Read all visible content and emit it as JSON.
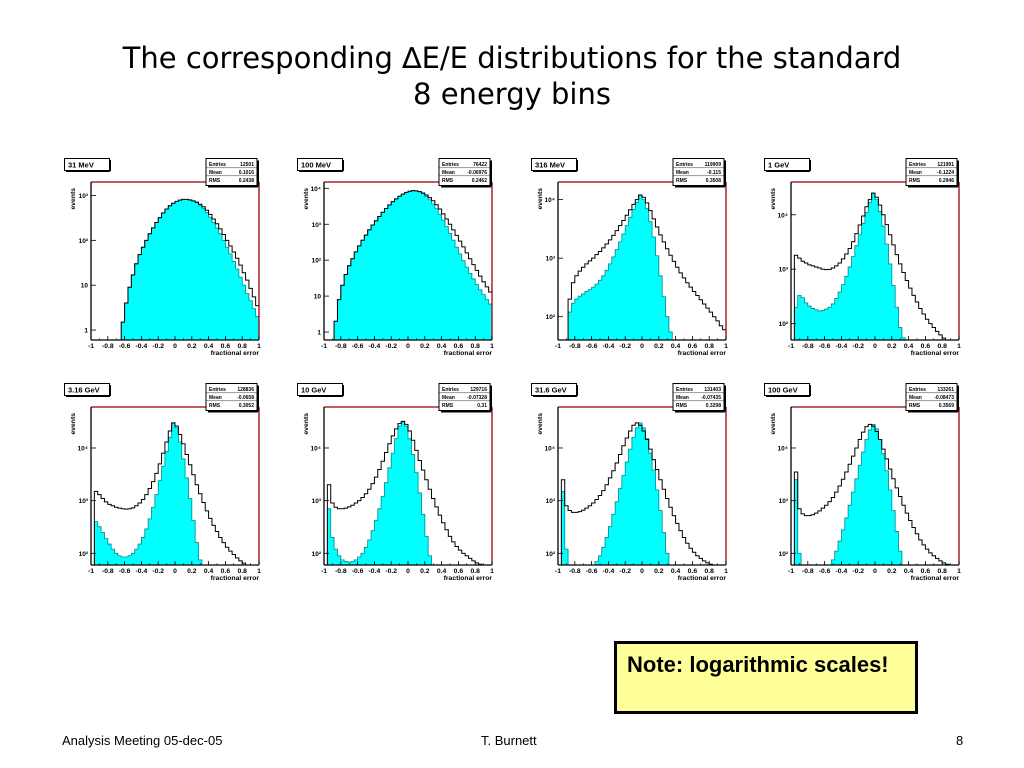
{
  "slide": {
    "title_line1": "The corresponding ∆E/E distributions for the standard",
    "title_line2": "8 energy bins",
    "note": "Note: logarithmic scales!",
    "footer_left": "Analysis Meeting 05-dec-05",
    "footer_center": "T. Burnett",
    "footer_right": "8"
  },
  "colors": {
    "fill": "#00ffff",
    "outline": "#000000",
    "frame_right": "#990000"
  },
  "chart_data": [
    {
      "type": "histogram",
      "title": "31 MeV",
      "xlabel": "fractional error",
      "ylabel": "events",
      "log_y": true,
      "xlim": [
        -1,
        1
      ],
      "ylim": [
        0.6,
        2000
      ],
      "xticks": [
        -1,
        -0.8,
        -0.6,
        -0.4,
        -0.2,
        0,
        0.2,
        0.4,
        0.6,
        0.8,
        1
      ],
      "yticks": [
        {
          "v": 1,
          "label": "1"
        },
        {
          "v": 10,
          "label": "10"
        },
        {
          "v": 100,
          "label": "10²"
        },
        {
          "v": 1000,
          "label": "10³"
        }
      ],
      "stats": [
        {
          "label": "Entries",
          "value": "12501"
        },
        {
          "label": "Mean",
          "value": "0.1016"
        },
        {
          "label": "RMS",
          "value": "0.2438"
        }
      ],
      "filled": [
        0.6,
        0.6,
        0.6,
        0.6,
        0.6,
        0.6,
        0.6,
        0.6,
        0.6,
        1.5,
        4,
        9,
        17,
        30,
        48,
        70,
        100,
        140,
        190,
        250,
        320,
        410,
        500,
        590,
        670,
        740,
        790,
        820,
        820,
        800,
        750,
        690,
        610,
        520,
        420,
        330,
        250,
        190,
        140,
        100,
        70,
        50,
        34,
        23,
        15,
        10,
        6.5,
        4.5,
        3,
        2
      ],
      "outline": [
        0.6,
        0.6,
        0.6,
        0.6,
        0.6,
        0.6,
        0.6,
        0.6,
        0.6,
        1.5,
        4,
        9,
        17,
        30,
        48,
        70,
        100,
        140,
        190,
        250,
        320,
        410,
        500,
        590,
        670,
        740,
        790,
        820,
        820,
        800,
        760,
        710,
        640,
        560,
        470,
        380,
        300,
        235,
        180,
        135,
        100,
        75,
        55,
        40,
        28,
        19,
        13,
        8.5,
        5.5,
        3.5
      ]
    },
    {
      "type": "histogram",
      "title": "100 MeV",
      "xlabel": "fractional error",
      "ylabel": "events",
      "log_y": true,
      "xlim": [
        -1,
        1
      ],
      "ylim": [
        0.6,
        15000
      ],
      "xticks": [
        -1,
        -0.8,
        -0.6,
        -0.4,
        -0.2,
        0,
        0.2,
        0.4,
        0.6,
        0.8,
        1
      ],
      "yticks": [
        {
          "v": 1,
          "label": "1"
        },
        {
          "v": 10,
          "label": "10"
        },
        {
          "v": 100,
          "label": "10²"
        },
        {
          "v": 1000,
          "label": "10³"
        },
        {
          "v": 10000,
          "label": "10⁴"
        }
      ],
      "stats": [
        {
          "label": "Entries",
          "value": "76422"
        },
        {
          "label": "Mean",
          "value": "-0.06976"
        },
        {
          "label": "RMS",
          "value": "0.2462"
        }
      ],
      "filled": [
        0.6,
        0.6,
        0.6,
        2,
        8,
        20,
        40,
        70,
        110,
        170,
        250,
        360,
        500,
        700,
        950,
        1250,
        1650,
        2150,
        2750,
        3450,
        4250,
        5100,
        6000,
        6900,
        7700,
        8300,
        8600,
        8500,
        8000,
        7100,
        6000,
        4800,
        3700,
        2700,
        1900,
        1300,
        860,
        560,
        360,
        230,
        150,
        97,
        64,
        43,
        30,
        21,
        15,
        11,
        8,
        6
      ],
      "outline": [
        0.6,
        0.6,
        0.6,
        2,
        8,
        20,
        40,
        70,
        110,
        170,
        250,
        360,
        500,
        700,
        950,
        1250,
        1650,
        2150,
        2750,
        3450,
        4250,
        5100,
        6000,
        6900,
        7700,
        8300,
        8600,
        8500,
        8100,
        7400,
        6500,
        5500,
        4500,
        3500,
        2650,
        1950,
        1400,
        1000,
        700,
        490,
        340,
        235,
        160,
        110,
        75,
        52,
        36,
        25,
        18,
        13
      ]
    },
    {
      "type": "histogram",
      "title": "316 MeV",
      "xlabel": "fractional error",
      "ylabel": "events",
      "log_y": true,
      "xlim": [
        -1,
        1
      ],
      "ylim": [
        40,
        20000
      ],
      "xticks": [
        -1,
        -0.8,
        -0.6,
        -0.4,
        -0.2,
        0,
        0.2,
        0.4,
        0.6,
        0.8,
        1
      ],
      "yticks": [
        {
          "v": 100,
          "label": "10²"
        },
        {
          "v": 1000,
          "label": "10³"
        },
        {
          "v": 10000,
          "label": "10⁴"
        }
      ],
      "stats": [
        {
          "label": "Entries",
          "value": "119909"
        },
        {
          "label": "Mean",
          "value": "-0.115"
        },
        {
          "label": "RMS",
          "value": "0.3508"
        }
      ],
      "filled": [
        40,
        40,
        40,
        120,
        170,
        200,
        225,
        245,
        270,
        290,
        320,
        360,
        420,
        500,
        620,
        800,
        1050,
        1400,
        1900,
        2600,
        3600,
        5000,
        6800,
        9000,
        12000,
        10000,
        7000,
        4200,
        2300,
        1100,
        500,
        220,
        100,
        55,
        40,
        40,
        40,
        40,
        40,
        40,
        40,
        40,
        40,
        40,
        40,
        40,
        40,
        40,
        40,
        40
      ],
      "outline": [
        40,
        40,
        40,
        200,
        380,
        500,
        600,
        700,
        800,
        900,
        1000,
        1150,
        1300,
        1500,
        1750,
        2050,
        2450,
        2950,
        3600,
        4400,
        5400,
        6700,
        8300,
        10000,
        12000,
        11000,
        8800,
        6500,
        4700,
        3400,
        2500,
        1900,
        1450,
        1120,
        880,
        700,
        560,
        460,
        380,
        320,
        270,
        230,
        195,
        165,
        140,
        120,
        100,
        85,
        70,
        60
      ]
    },
    {
      "type": "histogram",
      "title": "1 GeV",
      "xlabel": "fractional error",
      "ylabel": "events",
      "log_y": true,
      "xlim": [
        -1,
        1
      ],
      "ylim": [
        50,
        40000
      ],
      "xticks": [
        -1,
        -0.8,
        -0.6,
        -0.4,
        -0.2,
        0,
        0.2,
        0.4,
        0.6,
        0.8,
        1
      ],
      "yticks": [
        {
          "v": 100,
          "label": "10²"
        },
        {
          "v": 1000,
          "label": "10³"
        },
        {
          "v": 10000,
          "label": "10⁴"
        }
      ],
      "stats": [
        {
          "label": "Entries",
          "value": "121991"
        },
        {
          "label": "Mean",
          "value": "-0.1224"
        },
        {
          "label": "RMS",
          "value": "0.2946"
        }
      ],
      "filled": [
        50,
        200,
        330,
        300,
        240,
        210,
        190,
        180,
        170,
        175,
        185,
        200,
        230,
        290,
        380,
        520,
        740,
        1100,
        1700,
        2700,
        4300,
        7000,
        11000,
        17000,
        25000,
        19000,
        11500,
        6200,
        2900,
        1250,
        500,
        200,
        85,
        55,
        50,
        50,
        50,
        50,
        50,
        50,
        50,
        50,
        50,
        50,
        50,
        50,
        50,
        50,
        50,
        50
      ],
      "outline": [
        50,
        1800,
        1600,
        1400,
        1300,
        1200,
        1150,
        1100,
        1050,
        1000,
        980,
        990,
        1050,
        1150,
        1300,
        1550,
        1900,
        2400,
        3200,
        4500,
        6500,
        9500,
        14000,
        19000,
        25000,
        21000,
        15000,
        10000,
        6600,
        4300,
        2800,
        1850,
        1250,
        870,
        620,
        450,
        330,
        250,
        190,
        150,
        120,
        100,
        85,
        72,
        62,
        54,
        50,
        50,
        50,
        50
      ]
    },
    {
      "type": "histogram",
      "title": "3.16 GeV",
      "xlabel": "fractional error",
      "ylabel": "events",
      "log_y": true,
      "xlim": [
        -1,
        1
      ],
      "ylim": [
        60,
        60000
      ],
      "xticks": [
        -1,
        -0.8,
        -0.6,
        -0.4,
        -0.2,
        0,
        0.2,
        0.4,
        0.6,
        0.8,
        1
      ],
      "yticks": [
        {
          "v": 100,
          "label": "10²"
        },
        {
          "v": 1000,
          "label": "10³"
        },
        {
          "v": 10000,
          "label": "10⁴"
        }
      ],
      "stats": [
        {
          "label": "Entries",
          "value": "128836"
        },
        {
          "label": "Mean",
          "value": "-0.0658"
        },
        {
          "label": "RMS",
          "value": "0.3052"
        }
      ],
      "filled": [
        60,
        400,
        320,
        250,
        190,
        150,
        120,
        100,
        90,
        85,
        85,
        90,
        100,
        120,
        150,
        200,
        290,
        450,
        750,
        1300,
        2400,
        4500,
        8500,
        16000,
        30000,
        24000,
        13000,
        6200,
        2700,
        1100,
        420,
        160,
        75,
        60,
        60,
        60,
        60,
        60,
        60,
        60,
        60,
        60,
        60,
        60,
        60,
        60,
        60,
        60,
        60,
        60
      ],
      "outline": [
        60,
        1500,
        1300,
        1100,
        950,
        850,
        800,
        750,
        720,
        700,
        690,
        700,
        730,
        800,
        900,
        1050,
        1300,
        1700,
        2300,
        3300,
        5000,
        8000,
        13000,
        21000,
        30000,
        26000,
        18000,
        12000,
        7500,
        4800,
        3100,
        2000,
        1350,
        920,
        640,
        460,
        340,
        260,
        200,
        160,
        130,
        110,
        95,
        82,
        72,
        65,
        60,
        60,
        60,
        60
      ]
    },
    {
      "type": "histogram",
      "title": "10 GeV",
      "xlabel": "fractional error",
      "ylabel": "events",
      "log_y": true,
      "xlim": [
        -1,
        1
      ],
      "ylim": [
        60,
        60000
      ],
      "xticks": [
        -1,
        -0.8,
        -0.6,
        -0.4,
        -0.2,
        0,
        0.2,
        0.4,
        0.6,
        0.8,
        1
      ],
      "yticks": [
        {
          "v": 100,
          "label": "10²"
        },
        {
          "v": 1000,
          "label": "10³"
        },
        {
          "v": 10000,
          "label": "10⁴"
        }
      ],
      "stats": [
        {
          "label": "Entries",
          "value": "129716"
        },
        {
          "label": "Mean",
          "value": "-0.07328"
        },
        {
          "label": "RMS",
          "value": "0.31"
        }
      ],
      "filled": [
        60,
        700,
        200,
        120,
        90,
        75,
        70,
        68,
        70,
        75,
        85,
        100,
        130,
        180,
        270,
        420,
        700,
        1200,
        2200,
        4200,
        8000,
        15000,
        26000,
        32000,
        26000,
        15000,
        7500,
        3400,
        1400,
        550,
        210,
        90,
        60,
        60,
        60,
        60,
        60,
        60,
        60,
        60,
        60,
        60,
        60,
        60,
        60,
        60,
        60,
        60,
        60,
        60
      ],
      "outline": [
        60,
        2000,
        900,
        750,
        700,
        700,
        720,
        760,
        820,
        900,
        1000,
        1150,
        1350,
        1650,
        2100,
        2800,
        3900,
        5600,
        8200,
        12000,
        17000,
        23000,
        29000,
        32000,
        28000,
        21000,
        14000,
        9000,
        5800,
        3800,
        2500,
        1650,
        1100,
        760,
        530,
        380,
        280,
        210,
        165,
        135,
        115,
        100,
        90,
        80,
        72,
        66,
        62,
        60,
        60,
        60
      ]
    },
    {
      "type": "histogram",
      "title": "31.6 GeV",
      "xlabel": "fractional error",
      "ylabel": "events",
      "log_y": true,
      "xlim": [
        -1,
        1
      ],
      "ylim": [
        60,
        60000
      ],
      "xticks": [
        -1,
        -0.8,
        -0.6,
        -0.4,
        -0.2,
        0,
        0.2,
        0.4,
        0.6,
        0.8,
        1
      ],
      "yticks": [
        {
          "v": 100,
          "label": "10²"
        },
        {
          "v": 1000,
          "label": "10³"
        },
        {
          "v": 10000,
          "label": "10⁴"
        }
      ],
      "stats": [
        {
          "label": "Entries",
          "value": "131403"
        },
        {
          "label": "Mean",
          "value": "-0.07435"
        },
        {
          "label": "RMS",
          "value": "0.3298"
        }
      ],
      "filled": [
        60,
        1500,
        120,
        60,
        60,
        60,
        60,
        60,
        60,
        60,
        60,
        70,
        90,
        130,
        200,
        320,
        550,
        950,
        1700,
        3000,
        5400,
        9500,
        16000,
        24000,
        30000,
        24000,
        15000,
        8000,
        3800,
        1600,
        650,
        250,
        100,
        60,
        60,
        60,
        60,
        60,
        60,
        60,
        60,
        60,
        60,
        60,
        60,
        60,
        60,
        60,
        60,
        60
      ],
      "outline": [
        60,
        2500,
        800,
        650,
        600,
        600,
        620,
        660,
        720,
        800,
        900,
        1050,
        1250,
        1550,
        2000,
        2700,
        3700,
        5200,
        7500,
        11000,
        15500,
        21000,
        27000,
        30000,
        27000,
        21000,
        14500,
        9500,
        6000,
        3900,
        2500,
        1650,
        1100,
        750,
        520,
        370,
        270,
        200,
        155,
        125,
        105,
        90,
        80,
        72,
        66,
        62,
        60,
        60,
        60,
        60
      ]
    },
    {
      "type": "histogram",
      "title": "100 GeV",
      "xlabel": "fractional error",
      "ylabel": "events",
      "log_y": true,
      "xlim": [
        -1,
        1
      ],
      "ylim": [
        60,
        60000
      ],
      "xticks": [
        -1,
        -0.8,
        -0.6,
        -0.4,
        -0.2,
        0,
        0.2,
        0.4,
        0.6,
        0.8,
        1
      ],
      "yticks": [
        {
          "v": 100,
          "label": "10²"
        },
        {
          "v": 1000,
          "label": "10³"
        },
        {
          "v": 10000,
          "label": "10⁴"
        }
      ],
      "stats": [
        {
          "label": "Entries",
          "value": "133261"
        },
        {
          "label": "Mean",
          "value": "-0.08473"
        },
        {
          "label": "RMS",
          "value": "0.3569"
        }
      ],
      "filled": [
        60,
        2500,
        100,
        60,
        60,
        60,
        60,
        60,
        60,
        60,
        60,
        60,
        75,
        110,
        170,
        280,
        470,
        820,
        1450,
        2600,
        4700,
        8400,
        14500,
        22000,
        28000,
        23000,
        14500,
        7800,
        3700,
        1600,
        650,
        260,
        110,
        60,
        60,
        60,
        60,
        60,
        60,
        60,
        60,
        60,
        60,
        60,
        60,
        60,
        60,
        60,
        60,
        60
      ],
      "outline": [
        60,
        3500,
        700,
        560,
        520,
        520,
        540,
        580,
        640,
        720,
        820,
        960,
        1150,
        1450,
        1900,
        2550,
        3500,
        4900,
        7000,
        10000,
        14500,
        20000,
        25500,
        28000,
        26000,
        20500,
        14500,
        9500,
        6200,
        4000,
        2600,
        1750,
        1200,
        820,
        580,
        420,
        310,
        235,
        180,
        145,
        120,
        102,
        90,
        80,
        72,
        66,
        62,
        60,
        60,
        60
      ]
    }
  ]
}
